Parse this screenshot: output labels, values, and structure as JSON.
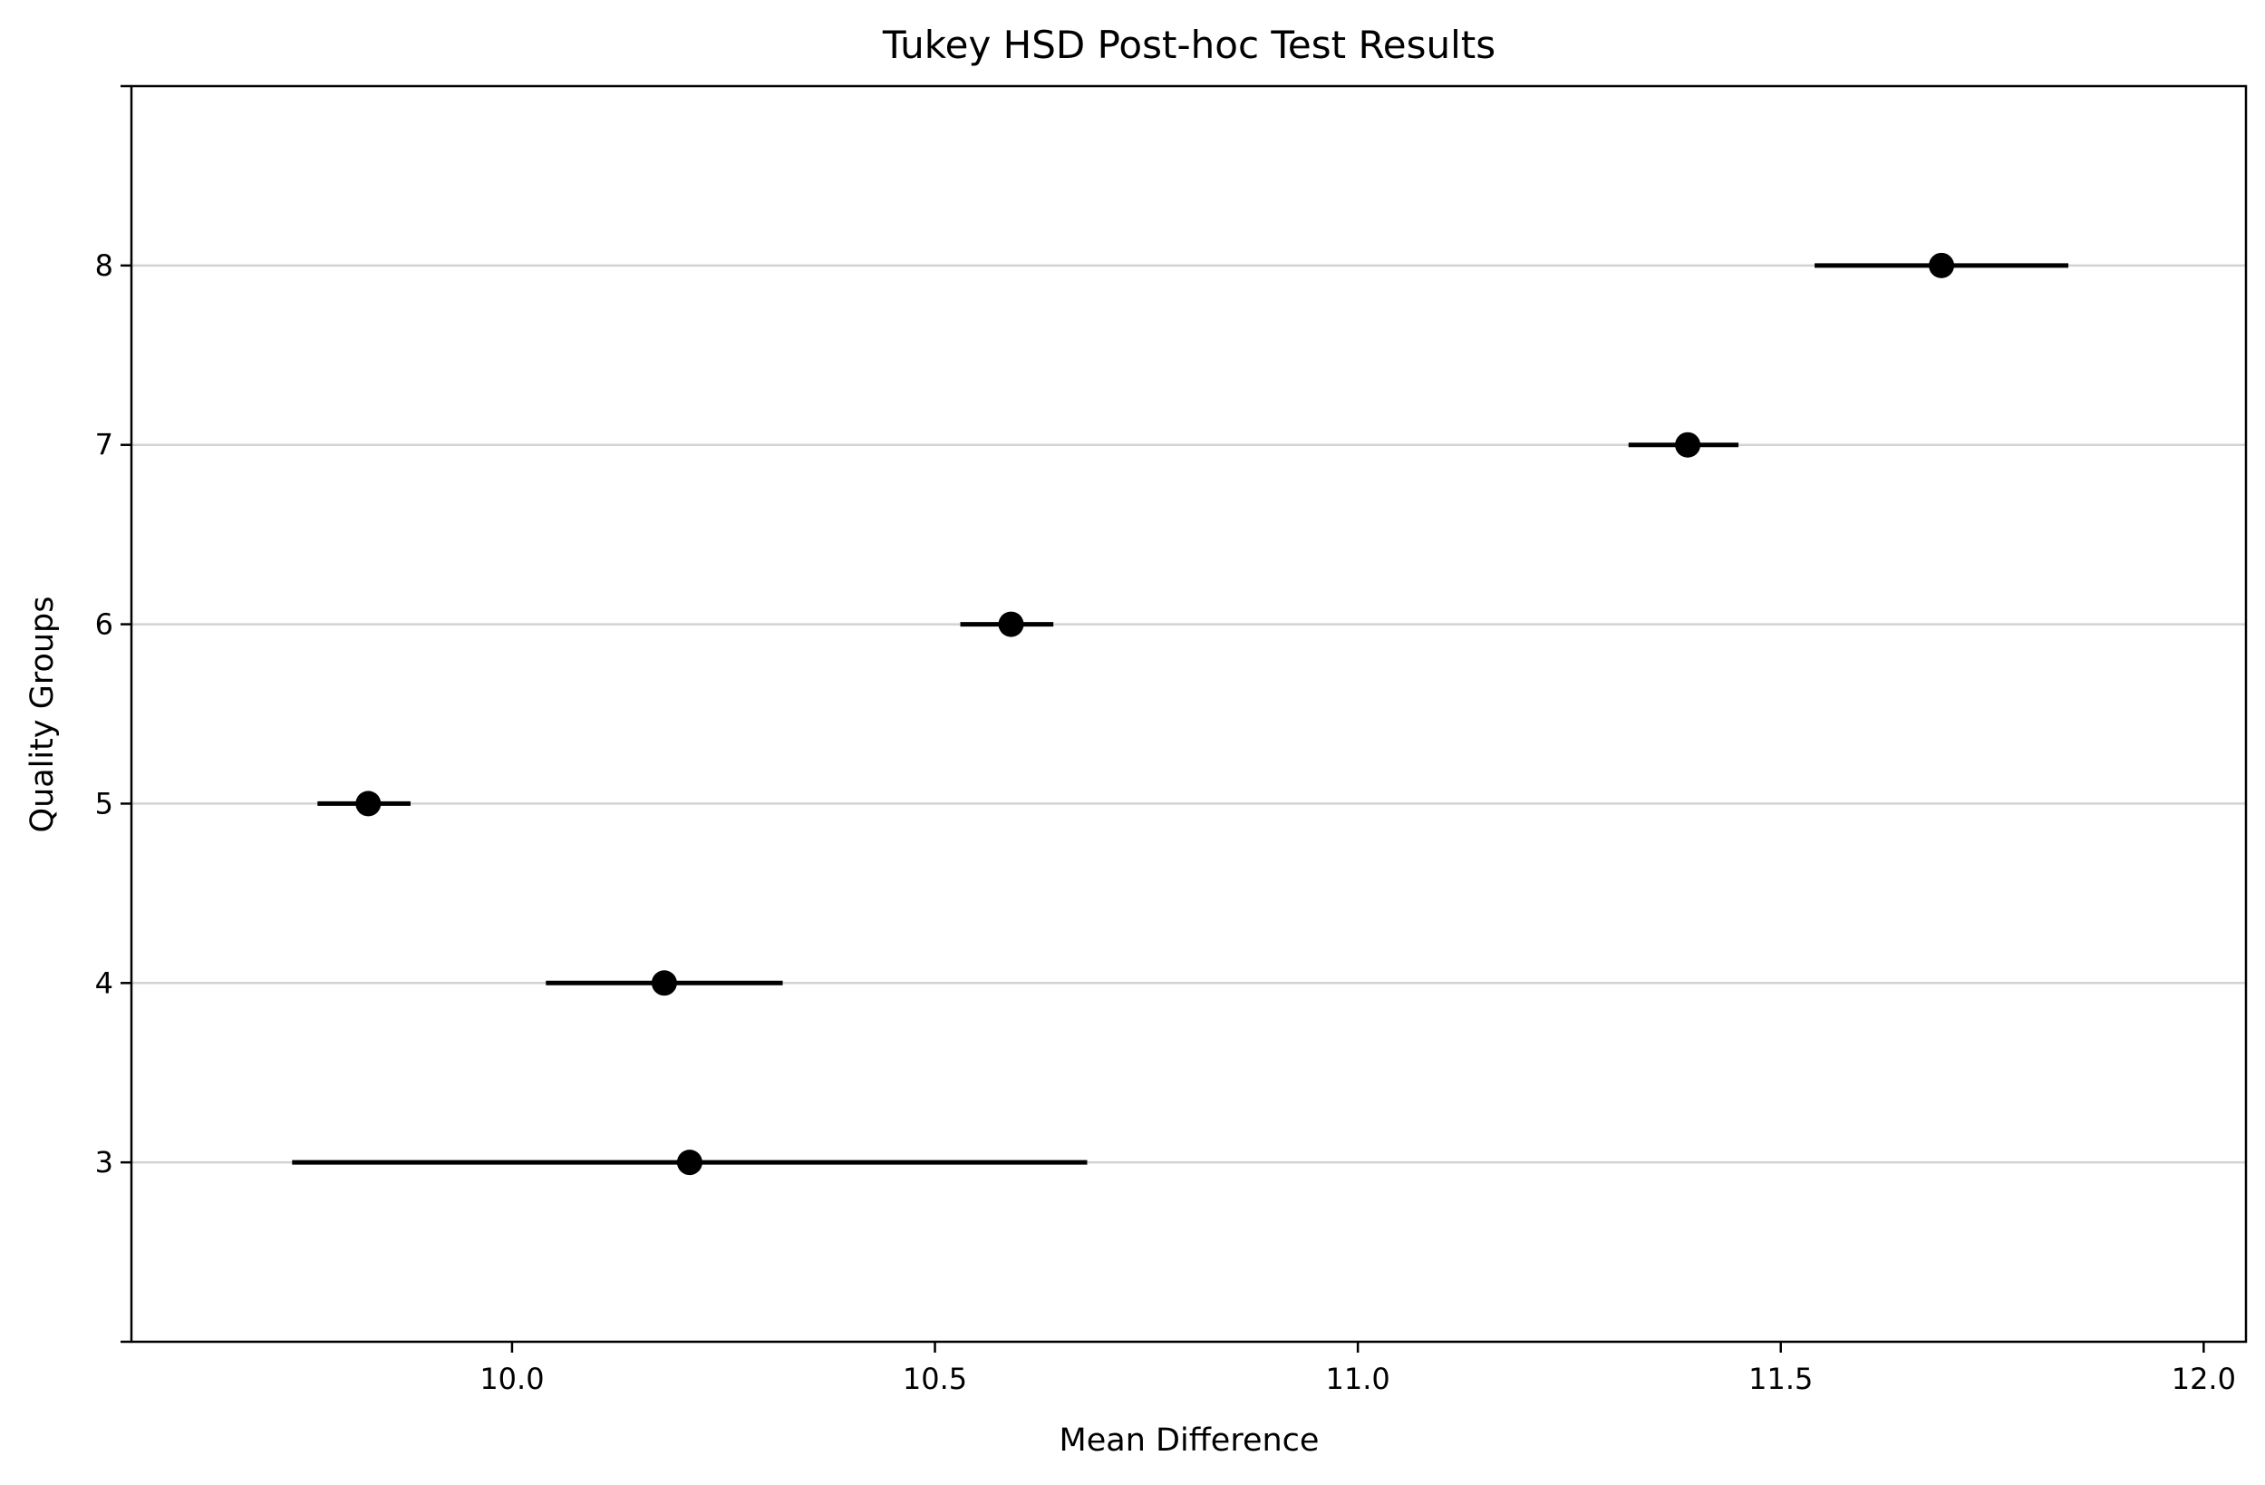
{
  "chart_data": {
    "type": "scatter",
    "title": "Tukey HSD Post-hoc Test Results",
    "xlabel": "Mean Difference",
    "ylabel": "Quality Groups",
    "xlim": [
      9.55,
      12.05
    ],
    "ylim": [
      2,
      9
    ],
    "x_ticks": [
      10.0,
      10.5,
      11.0,
      11.5,
      12.0
    ],
    "x_tick_labels": [
      "10.0",
      "10.5",
      "11.0",
      "11.5",
      "12.0"
    ],
    "y_ticks": [
      3,
      4,
      5,
      6,
      7,
      8
    ],
    "y_tick_labels": [
      "3",
      "4",
      "5",
      "6",
      "7",
      "8"
    ],
    "grid": "horizontal",
    "points": [
      {
        "group": 3,
        "mean": 10.21,
        "lower": 9.74,
        "upper": 10.68
      },
      {
        "group": 4,
        "mean": 10.18,
        "lower": 10.04,
        "upper": 10.32
      },
      {
        "group": 5,
        "mean": 9.83,
        "lower": 9.77,
        "upper": 9.88
      },
      {
        "group": 6,
        "mean": 10.59,
        "lower": 10.53,
        "upper": 10.64
      },
      {
        "group": 7,
        "mean": 11.39,
        "lower": 11.32,
        "upper": 11.45
      },
      {
        "group": 8,
        "mean": 11.69,
        "lower": 11.54,
        "upper": 11.84
      }
    ],
    "colors": {
      "marker": "#000000",
      "errorbar": "#000000",
      "grid": "#d3d3d3",
      "axes": "#000000"
    }
  }
}
